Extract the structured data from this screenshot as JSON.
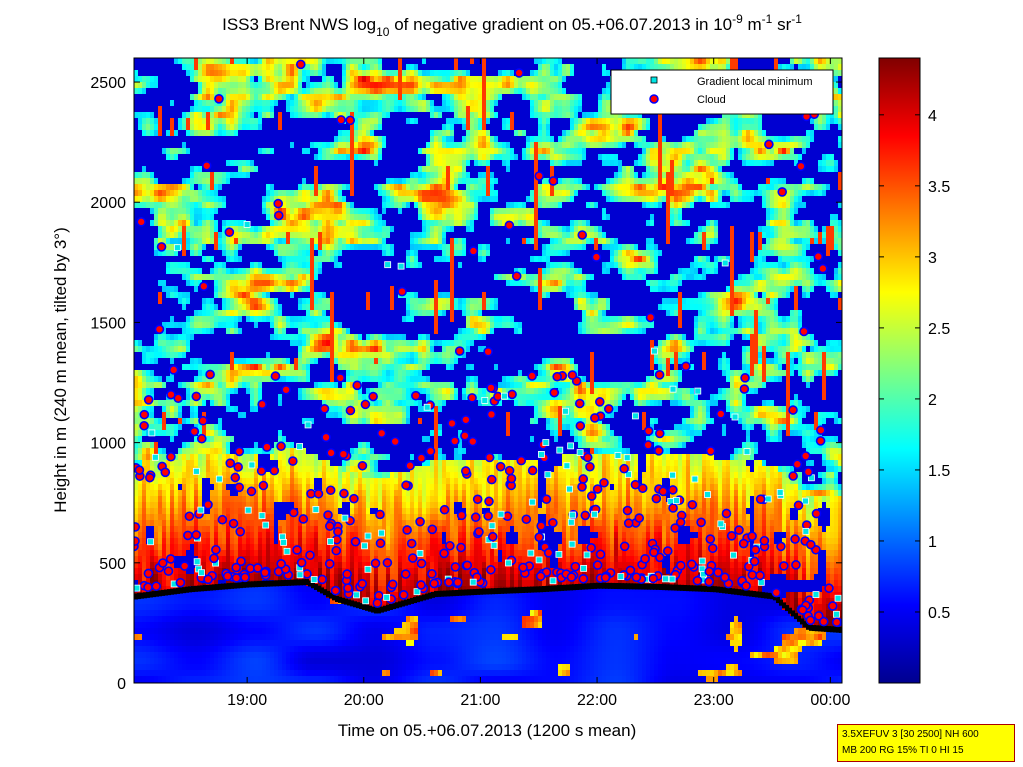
{
  "chart_data": {
    "type": "heatmap",
    "title": "ISS3 Brent NWS log",
    "title_sub": "10",
    "title_mid": " of negative gradient on 05.+06.07.2013 in 10",
    "title_sup1": "-9",
    "title_mid2": " m",
    "title_sup2": "-1",
    "title_mid3": " sr",
    "title_sup3": "-1",
    "xlabel": "Time on 05.+06.07.2013 (1200 s mean)",
    "ylabel": "Height in m (240 m mean, tilted by 3°)",
    "x_ticks": [
      "19:00",
      "20:00",
      "21:00",
      "22:00",
      "23:00",
      "00:00"
    ],
    "x_tick_hours": [
      19,
      20,
      21,
      22,
      23,
      24
    ],
    "xlim_hours": [
      18.03,
      24.1
    ],
    "y_ticks": [
      "0",
      "500",
      "1000",
      "1500",
      "2000",
      "2500"
    ],
    "y_tick_values": [
      0,
      500,
      1000,
      1500,
      2000,
      2500
    ],
    "ylim": [
      0,
      2600
    ],
    "colorbar": {
      "ticks": [
        "0.5",
        "1",
        "1.5",
        "2",
        "2.5",
        "3",
        "3.5",
        "4"
      ],
      "tick_values": [
        0.5,
        1,
        1.5,
        2,
        2.5,
        3,
        3.5,
        4
      ],
      "range": [
        0,
        4.4
      ],
      "colormap": "jet"
    },
    "legend": {
      "placement": "top-right",
      "entries": [
        {
          "label": "Gradient local minimum",
          "marker": "square",
          "color": "#00e5e5"
        },
        {
          "label": "Cloud",
          "marker": "circle",
          "color": "#ff0000",
          "edge": "#0000ff"
        }
      ]
    },
    "cloud_base_line": [
      {
        "t": 18.03,
        "h": 360
      },
      {
        "t": 18.5,
        "h": 390
      },
      {
        "t": 19.0,
        "h": 410
      },
      {
        "t": 19.5,
        "h": 420
      },
      {
        "t": 19.75,
        "h": 350
      },
      {
        "t": 20.1,
        "h": 300
      },
      {
        "t": 20.6,
        "h": 370
      },
      {
        "t": 21.0,
        "h": 380
      },
      {
        "t": 21.5,
        "h": 390
      },
      {
        "t": 22.0,
        "h": 405
      },
      {
        "t": 22.5,
        "h": 400
      },
      {
        "t": 23.0,
        "h": 390
      },
      {
        "t": 23.5,
        "h": 360
      },
      {
        "t": 23.8,
        "h": 230
      },
      {
        "t": 24.1,
        "h": 220
      }
    ]
  },
  "infobox": {
    "line1": "3.5XEFUV 3 [30 2500] NH 600",
    "line2": "MB 200 RG 15% TI 0 HI 15"
  }
}
